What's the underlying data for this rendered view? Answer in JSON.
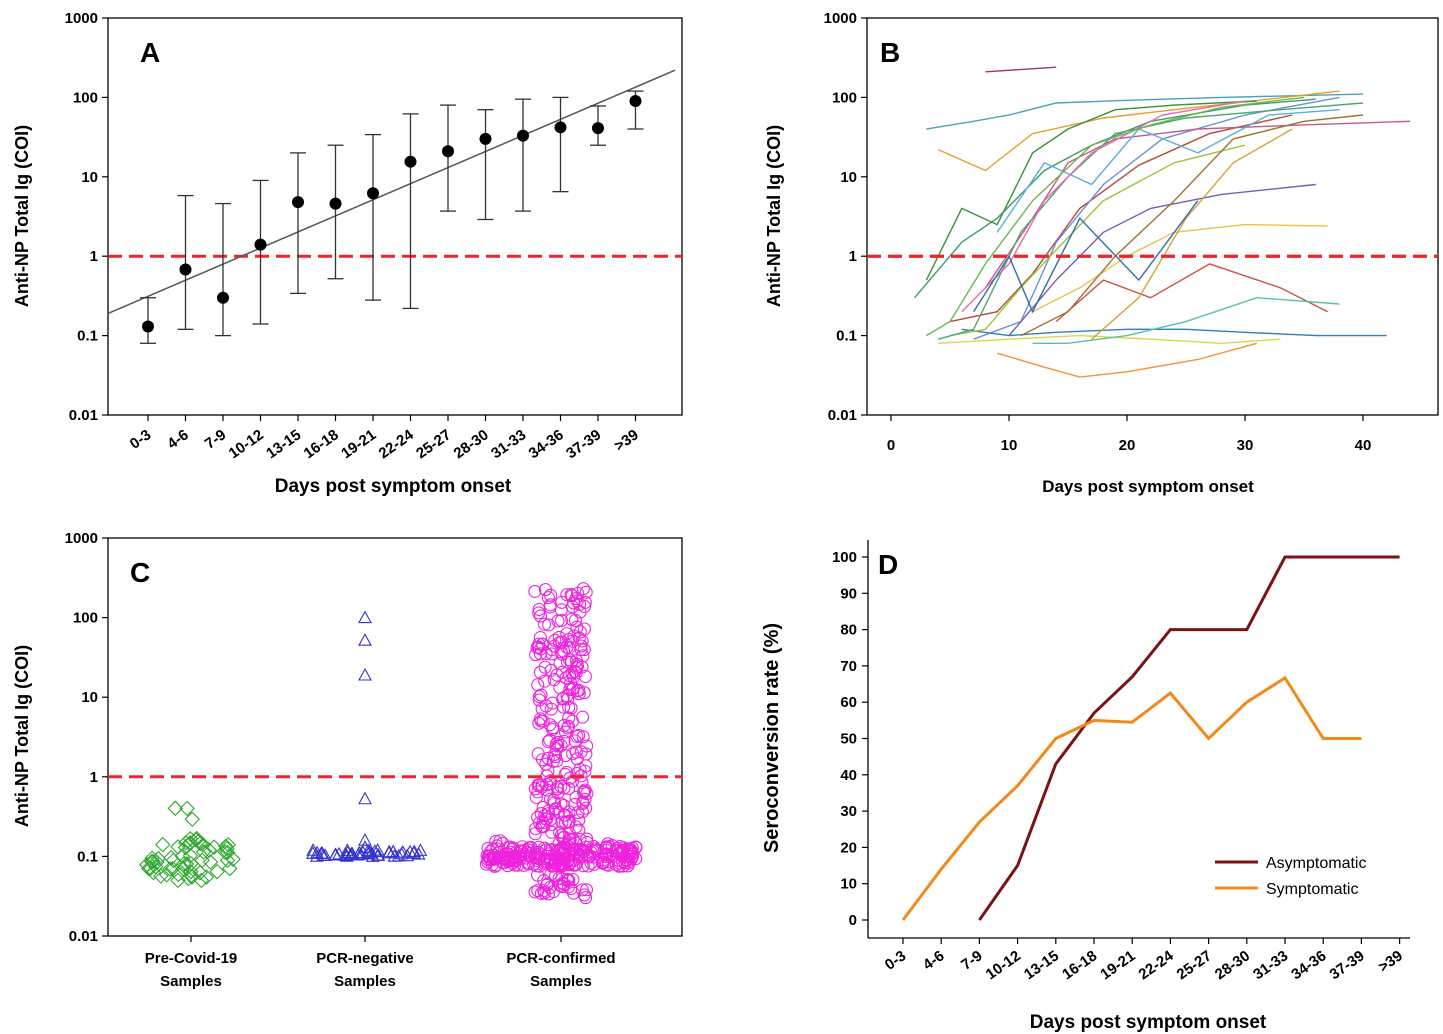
{
  "colors": {
    "threshold": "#e8262b",
    "marker_a": "#000000",
    "pre_covid": "#2ea82e",
    "pcr_negative": "#3333cc",
    "pcr_confirmed": "#ee22dd",
    "asymptomatic": "#7a1217",
    "symptomatic": "#f08a1c"
  },
  "chart_data": [
    {
      "panel": "A",
      "type": "scatter",
      "xlabel": "Days post symptom onset",
      "ylabel": "Anti-NP Total Ig (COI)",
      "yscale": "log",
      "ylim": [
        0.01,
        1000
      ],
      "yticks": [
        "0.01",
        "0.1",
        "1",
        "10",
        "100",
        "1000"
      ],
      "categories": [
        "0-3",
        "4-6",
        "7-9",
        "10-12",
        "13-15",
        "16-18",
        "19-21",
        "22-24",
        "25-27",
        "28-30",
        "31-33",
        "34-36",
        "37-39",
        ">39"
      ],
      "values": [
        0.13,
        0.68,
        0.3,
        1.4,
        4.8,
        4.6,
        6.2,
        15.5,
        21,
        30,
        33,
        42,
        41,
        90
      ],
      "err_low": [
        0.08,
        0.12,
        0.1,
        0.14,
        0.34,
        0.52,
        0.28,
        0.22,
        3.7,
        2.9,
        3.7,
        6.5,
        25,
        40
      ],
      "err_high": [
        0.3,
        5.8,
        4.6,
        9,
        20,
        25,
        34,
        62,
        80,
        70,
        95,
        100,
        78,
        120
      ],
      "fit_line": {
        "x_start": 0,
        "y_start": 0.19,
        "x_end": 14.5,
        "y_end": 220
      },
      "threshold": 1
    },
    {
      "panel": "B",
      "type": "line",
      "xlabel": "Days post symptom onset",
      "ylabel": "Anti-NP Total Ig (COI)",
      "yscale": "log",
      "ylim": [
        0.01,
        1000
      ],
      "yticks": [
        "0.01",
        "0.1",
        "1",
        "10",
        "100",
        "1000"
      ],
      "xlim": [
        -2,
        46
      ],
      "xticks": [
        "0",
        "10",
        "20",
        "30",
        "40"
      ],
      "threshold": 1,
      "series": [
        {
          "color": "#9b3b6b",
          "x": [
            8,
            14
          ],
          "y": [
            210,
            240
          ]
        },
        {
          "color": "#4aa3b8",
          "x": [
            3,
            7,
            10,
            14,
            20,
            28,
            40
          ],
          "y": [
            40,
            50,
            60,
            85,
            92,
            100,
            110
          ]
        },
        {
          "color": "#e3a02a",
          "x": [
            4,
            8,
            12,
            18,
            24,
            32,
            38
          ],
          "y": [
            22,
            12,
            35,
            55,
            70,
            95,
            120
          ]
        },
        {
          "color": "#3c9c6c",
          "x": [
            2,
            6,
            9,
            13,
            17,
            22,
            30,
            36
          ],
          "y": [
            0.3,
            1.5,
            3,
            12,
            25,
            50,
            80,
            95
          ]
        },
        {
          "color": "#b84a3a",
          "x": [
            5,
            9,
            12,
            16,
            21,
            27,
            34
          ],
          "y": [
            0.15,
            0.2,
            0.6,
            4,
            14,
            35,
            60
          ]
        },
        {
          "color": "#6d8fd8",
          "x": [
            7,
            11,
            14,
            18,
            23,
            30,
            38
          ],
          "y": [
            0.09,
            0.15,
            1.5,
            8,
            30,
            60,
            100
          ]
        },
        {
          "color": "#d6d84a",
          "x": [
            4,
            10,
            16,
            22,
            28,
            33
          ],
          "y": [
            0.08,
            0.09,
            0.1,
            0.09,
            0.08,
            0.09
          ]
        },
        {
          "color": "#f2923a",
          "x": [
            9,
            13,
            16,
            20,
            26,
            31
          ],
          "y": [
            0.06,
            0.04,
            0.03,
            0.035,
            0.05,
            0.08
          ]
        },
        {
          "color": "#2e7fbf",
          "x": [
            6,
            10,
            14,
            20,
            25,
            30,
            36,
            42
          ],
          "y": [
            0.12,
            0.1,
            0.11,
            0.12,
            0.12,
            0.11,
            0.1,
            0.1
          ]
        },
        {
          "color": "#3d8f3a",
          "x": [
            3,
            6,
            9,
            12,
            15,
            19,
            24,
            31
          ],
          "y": [
            0.5,
            4,
            2.5,
            20,
            40,
            70,
            80,
            90
          ]
        },
        {
          "color": "#c45a8a",
          "x": [
            8,
            12,
            15,
            19,
            26,
            35,
            44
          ],
          "y": [
            0.4,
            3,
            15,
            30,
            40,
            45,
            50
          ]
        },
        {
          "color": "#9cc43a",
          "x": [
            5,
            8,
            11,
            14,
            18,
            24,
            30
          ],
          "y": [
            0.1,
            0.12,
            0.4,
            1.2,
            5,
            15,
            25
          ]
        },
        {
          "color": "#7a5ab8",
          "x": [
            10,
            14,
            18,
            22,
            28,
            36
          ],
          "y": [
            0.1,
            0.5,
            2,
            4,
            6,
            8
          ]
        },
        {
          "color": "#e8c24a",
          "x": [
            12,
            16,
            20,
            24,
            30,
            37
          ],
          "y": [
            0.2,
            0.4,
            1,
            2,
            2.5,
            2.4
          ]
        },
        {
          "color": "#4fa86e",
          "x": [
            4,
            7,
            11,
            15,
            19,
            25,
            33,
            40
          ],
          "y": [
            0.09,
            0.12,
            2,
            10,
            35,
            55,
            70,
            85
          ]
        },
        {
          "color": "#c9544a",
          "x": [
            14,
            18,
            22,
            27,
            33,
            37
          ],
          "y": [
            0.15,
            0.5,
            0.3,
            0.8,
            0.4,
            0.2
          ]
        },
        {
          "color": "#5ab0d8",
          "x": [
            9,
            13,
            17,
            21,
            26,
            32,
            38
          ],
          "y": [
            2,
            15,
            8,
            40,
            20,
            60,
            70
          ]
        },
        {
          "color": "#a0722e",
          "x": [
            11,
            15,
            19,
            24,
            29,
            35,
            40
          ],
          "y": [
            0.1,
            0.2,
            1,
            5,
            30,
            50,
            60
          ]
        },
        {
          "color": "#e86ab0",
          "x": [
            6,
            10,
            13,
            17,
            23,
            30
          ],
          "y": [
            0.2,
            0.8,
            5,
            20,
            60,
            90
          ]
        },
        {
          "color": "#58c0a8",
          "x": [
            12,
            15,
            20,
            25,
            31,
            38
          ],
          "y": [
            0.08,
            0.08,
            0.1,
            0.15,
            0.3,
            0.25
          ]
        },
        {
          "color": "#d2a53a",
          "x": [
            17,
            21,
            25,
            29,
            34
          ],
          "y": [
            0.09,
            0.3,
            3,
            15,
            40
          ]
        },
        {
          "color": "#2f6fa8",
          "x": [
            7,
            10,
            12,
            16,
            21,
            26
          ],
          "y": [
            0.2,
            1,
            0.2,
            3,
            0.5,
            5
          ]
        },
        {
          "color": "#6bb84a",
          "x": [
            3,
            5,
            8,
            12,
            17,
            22,
            28,
            35
          ],
          "y": [
            0.1,
            0.15,
            0.8,
            5,
            25,
            45,
            75,
            100
          ]
        }
      ]
    },
    {
      "panel": "C",
      "type": "scatter",
      "ylabel": "Anti-NP Total Ig (COI)",
      "yscale": "log",
      "ylim": [
        0.01,
        1000
      ],
      "yticks": [
        "0.01",
        "0.1",
        "1",
        "10",
        "100",
        "1000"
      ],
      "threshold": 1,
      "groups": [
        {
          "label_line1": "Pre-Covid-19",
          "label_line2": "Samples",
          "marker": "diamond",
          "count": 60,
          "median": 0.09,
          "min": 0.05,
          "max": 0.6
        },
        {
          "label_line1": "PCR-negative",
          "label_line2": "Samples",
          "marker": "triangle",
          "count": 45,
          "median": 0.1,
          "min": 0.09,
          "max": 100,
          "high_values": [
            100,
            52,
            19,
            0.53,
            0.16,
            0.13
          ]
        },
        {
          "label_line1": "PCR-confirmed",
          "label_line2": "Samples",
          "marker": "circle",
          "count": 520,
          "median": 0.1,
          "min": 0.03,
          "max": 240
        }
      ]
    },
    {
      "panel": "D",
      "type": "line",
      "xlabel": "Days post symptom onset",
      "ylabel": "Seroconversion rate (%)",
      "ylim": [
        0,
        100
      ],
      "yticks": [
        "0",
        "10",
        "20",
        "30",
        "40",
        "50",
        "60",
        "70",
        "80",
        "90",
        "100"
      ],
      "categories": [
        "0-3",
        "4-6",
        "7-9",
        "10-12",
        "13-15",
        "16-18",
        "19-21",
        "22-24",
        "25-27",
        "28-30",
        "31-33",
        "34-36",
        "37-39",
        ">39"
      ],
      "series": [
        {
          "name": "Asymptomatic",
          "values": [
            null,
            null,
            0,
            15,
            43,
            57,
            67,
            80,
            80,
            80,
            100,
            100,
            100,
            100
          ]
        },
        {
          "name": "Symptomatic",
          "values": [
            0,
            14,
            27,
            37,
            50,
            55,
            54.5,
            62.5,
            50,
            60,
            66.7,
            50,
            50,
            null
          ]
        }
      ],
      "legend_position": "bottom-right"
    }
  ]
}
